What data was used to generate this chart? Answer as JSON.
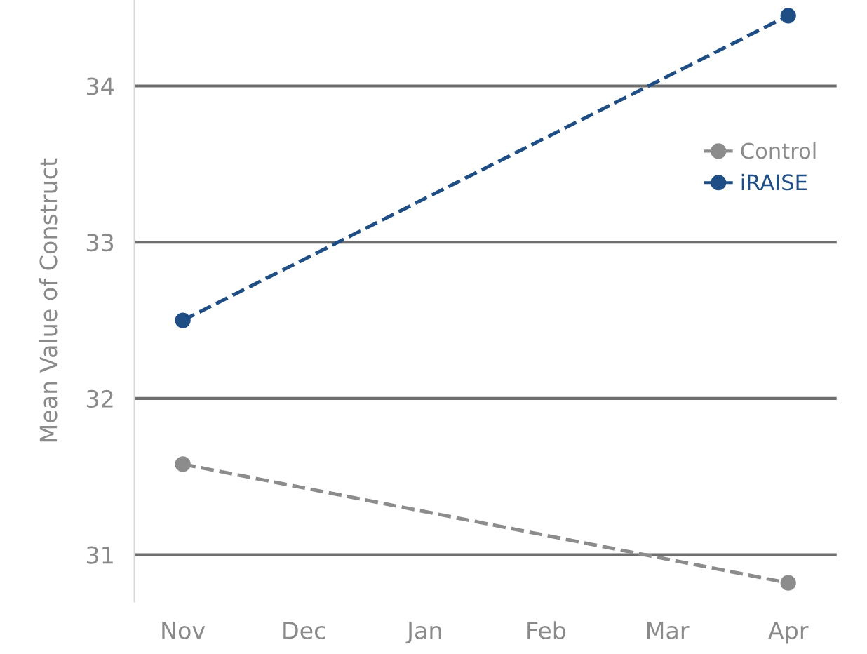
{
  "chart_data": {
    "type": "line",
    "ylabel": "Mean Value of Construct",
    "categories": [
      "Nov",
      "Dec",
      "Jan",
      "Feb",
      "Mar",
      "Apr"
    ],
    "series": [
      {
        "name": "Control",
        "color": "#8c8c8c",
        "values": [
          31.58,
          null,
          null,
          null,
          null,
          30.82
        ]
      },
      {
        "name": "iRAISE",
        "color": "#1f4e85",
        "values": [
          32.5,
          null,
          null,
          null,
          null,
          34.45
        ]
      }
    ],
    "ylim": [
      30.7,
      34.55
    ],
    "yticks": [
      31,
      32,
      33,
      34
    ],
    "grid": "y",
    "legend": "right",
    "marker": "circle",
    "line_style": "dashed"
  }
}
